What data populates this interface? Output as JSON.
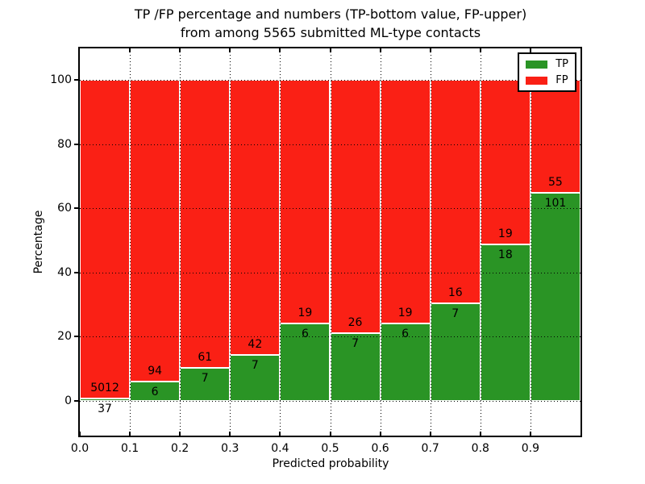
{
  "chart_data": {
    "type": "bar",
    "stacked": true,
    "normalized": "each bin scaled to 100%",
    "title_line1": "TP /FP percentage and numbers (TP-bottom value, FP-upper)",
    "title_line2": "from among 5565 submitted ML-type contacts",
    "xlabel": "Predicted probability",
    "ylabel": "Percentage",
    "total_contacts": 5565,
    "xticks": [
      "0.0",
      "0.1",
      "0.2",
      "0.3",
      "0.4",
      "0.5",
      "0.6",
      "0.7",
      "0.8",
      "0.9"
    ],
    "yticks": [
      0,
      20,
      40,
      60,
      80,
      100
    ],
    "xlim": [
      0,
      1
    ],
    "ylim": [
      -10.8,
      109.8
    ],
    "grid": "dotted black, horizontal and vertical",
    "bar_edge_color": "#ffffff",
    "series": [
      {
        "name": "TP",
        "color": "#2a9425",
        "counts": [
          37,
          6,
          7,
          7,
          6,
          7,
          6,
          7,
          18,
          101
        ]
      },
      {
        "name": "FP",
        "color": "#fa2015",
        "counts": [
          5012,
          94,
          61,
          42,
          19,
          26,
          19,
          16,
          19,
          55
        ]
      }
    ],
    "legend": {
      "position": "upper-right",
      "items": [
        {
          "label": "TP",
          "color": "#2a9425"
        },
        {
          "label": "FP",
          "color": "#fa2015"
        }
      ]
    }
  }
}
